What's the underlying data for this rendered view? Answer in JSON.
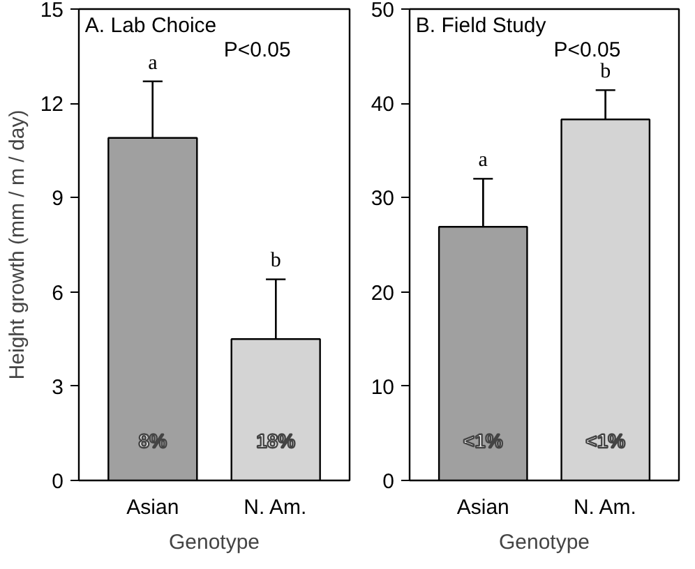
{
  "chart_data": [
    {
      "type": "bar",
      "title": "A. Lab Choice",
      "ylabel": "Height growth (mm / m / day)",
      "xlabel": "Genotype",
      "categories": [
        "Asian",
        "N. Am."
      ],
      "values": [
        10.9,
        4.5
      ],
      "errors": [
        1.8,
        1.9
      ],
      "colors": [
        "#a0a0a0",
        "#d4d4d4"
      ],
      "ylim": [
        0,
        15
      ],
      "yticks": [
        0,
        3,
        6,
        9,
        12,
        15
      ],
      "grid": false,
      "annotations": [
        "P<0.05",
        {
          "text": "a",
          "x": "Asian",
          "y": 12.7
        },
        {
          "text": "b",
          "x": "N. Am.",
          "y": 6.4
        },
        "8%",
        "18%"
      ]
    },
    {
      "type": "bar",
      "title": "B. Field Study",
      "xlabel": "Genotype",
      "categories": [
        "Asian",
        "N. Am."
      ],
      "values": [
        26.9,
        38.3
      ],
      "errors": [
        5.1,
        3.1
      ],
      "colors": [
        "#a0a0a0",
        "#d4d4d4"
      ],
      "ylim": [
        0,
        50
      ],
      "yticks": [
        0,
        10,
        20,
        30,
        40,
        50
      ],
      "grid": false,
      "annotations": [
        "P<0.05",
        {
          "text": "a",
          "x": "Asian",
          "y": 32
        },
        {
          "text": "b",
          "x": "N. Am.",
          "y": 41.4
        },
        "<1%",
        "<1%"
      ]
    }
  ]
}
